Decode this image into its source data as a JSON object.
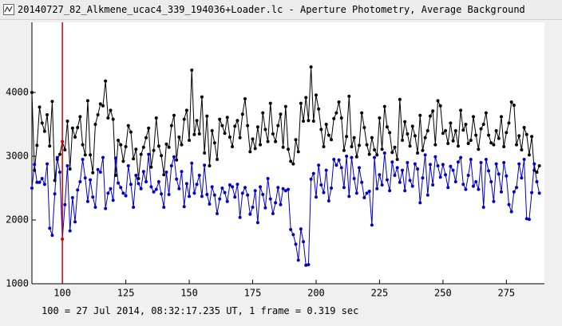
{
  "window_title": "20140727_82_Alkmene_ucac4_339_194036+Loader.lc - Aperture Photometry, Average Background",
  "status": "100 = 27 Jul 2014, 08:32:17.235 UT, 1 frame = 0.319 sec",
  "chart_data": {
    "type": "scatter",
    "xlim": [
      88,
      290
    ],
    "ylim": [
      1000,
      5100
    ],
    "xticks": [
      100,
      125,
      150,
      175,
      200,
      225,
      250,
      275
    ],
    "yticks": [
      1000,
      2000,
      3000,
      4000
    ],
    "cursor": 100,
    "cursor_color": "#cc0000",
    "x": [
      88,
      89,
      90,
      91,
      92,
      93,
      94,
      95,
      96,
      97,
      98,
      99,
      100,
      101,
      102,
      103,
      104,
      105,
      106,
      107,
      108,
      109,
      110,
      111,
      112,
      113,
      114,
      115,
      116,
      117,
      118,
      119,
      120,
      121,
      122,
      123,
      124,
      125,
      126,
      127,
      128,
      129,
      130,
      131,
      132,
      133,
      134,
      135,
      136,
      137,
      138,
      139,
      140,
      141,
      142,
      143,
      144,
      145,
      146,
      147,
      148,
      149,
      150,
      151,
      152,
      153,
      154,
      155,
      156,
      157,
      158,
      159,
      160,
      161,
      162,
      163,
      164,
      165,
      166,
      167,
      168,
      169,
      170,
      171,
      172,
      173,
      174,
      175,
      176,
      177,
      178,
      179,
      180,
      181,
      182,
      183,
      184,
      185,
      186,
      187,
      188,
      189,
      190,
      191,
      192,
      193,
      194,
      195,
      196,
      197,
      198,
      199,
      200,
      201,
      202,
      203,
      204,
      205,
      206,
      207,
      208,
      209,
      210,
      211,
      212,
      213,
      214,
      215,
      216,
      217,
      218,
      219,
      220,
      221,
      222,
      223,
      224,
      225,
      226,
      227,
      228,
      229,
      230,
      231,
      232,
      233,
      234,
      235,
      236,
      237,
      238,
      239,
      240,
      241,
      242,
      243,
      244,
      245,
      246,
      247,
      248,
      249,
      250,
      251,
      252,
      253,
      254,
      255,
      256,
      257,
      258,
      259,
      260,
      261,
      262,
      263,
      264,
      265,
      266,
      267,
      268,
      269,
      270,
      271,
      272,
      273,
      274,
      275,
      276,
      277,
      278,
      279,
      280,
      281,
      282,
      283,
      284,
      285,
      286,
      287,
      288
    ],
    "series": [
      {
        "color": "#000000",
        "values": [
          4000,
          2780,
          3170,
          3770,
          3520,
          3390,
          3650,
          3160,
          3860,
          2620,
          2950,
          3030,
          3230,
          3100,
          3550,
          2800,
          3440,
          3300,
          3450,
          3620,
          3180,
          3020,
          3870,
          3020,
          2740,
          3500,
          3650,
          3820,
          3790,
          4180,
          3600,
          3720,
          3580,
          2700,
          3250,
          3180,
          2920,
          3150,
          3480,
          3380,
          2960,
          3110,
          2650,
          3030,
          3140,
          3290,
          3440,
          2830,
          3090,
          3600,
          3160,
          3010,
          2710,
          3190,
          3140,
          3480,
          3640,
          2940,
          3300,
          3180,
          3580,
          3720,
          3250,
          4350,
          3340,
          3560,
          3350,
          3930,
          3050,
          3630,
          2850,
          3400,
          3210,
          2950,
          3580,
          3480,
          3360,
          3610,
          3300,
          3150,
          3470,
          3560,
          3290,
          3660,
          3900,
          3480,
          3070,
          3270,
          3120,
          3460,
          3180,
          3680,
          3420,
          3230,
          3830,
          3350,
          3230,
          3480,
          3660,
          3140,
          3780,
          3110,
          2920,
          2880,
          3260,
          3070,
          3830,
          3550,
          3920,
          3560,
          4400,
          3550,
          3960,
          3740,
          3420,
          3150,
          3500,
          3330,
          3260,
          3590,
          3680,
          3850,
          3600,
          3090,
          3310,
          3940,
          3150,
          3290,
          2990,
          3170,
          3680,
          3450,
          3180,
          3030,
          3290,
          3100,
          3020,
          3600,
          3110,
          3780,
          3460,
          3370,
          3060,
          3140,
          2950,
          3890,
          3250,
          3540,
          3350,
          3160,
          3470,
          3320,
          3050,
          3640,
          3090,
          3290,
          3400,
          3630,
          3710,
          3180,
          3870,
          3790,
          3360,
          3400,
          3200,
          3520,
          3240,
          3400,
          3160,
          3720,
          3410,
          3500,
          3200,
          3250,
          3620,
          3330,
          3110,
          3430,
          3500,
          3680,
          3330,
          3210,
          3180,
          3400,
          3280,
          3620,
          3150,
          3370,
          3520,
          3850,
          3800,
          3180,
          3320,
          3100,
          3450,
          3340,
          3020,
          3310,
          2780,
          2750,
          2850
        ]
      },
      {
        "color": "#0000cc",
        "values": [
          2500,
          2870,
          2590,
          2590,
          2650,
          2560,
          2880,
          1870,
          1760,
          2410,
          2980,
          2750,
          1700,
          2240,
          2850,
          1830,
          2350,
          1970,
          2470,
          2600,
          2950,
          2660,
          2290,
          2630,
          2360,
          2200,
          2790,
          2750,
          2980,
          2180,
          2420,
          2490,
          2310,
          2970,
          2580,
          2510,
          2420,
          2380,
          2850,
          2560,
          2200,
          2700,
          2570,
          2490,
          2760,
          2600,
          3030,
          2520,
          2440,
          2480,
          2600,
          2410,
          2200,
          2750,
          2400,
          2850,
          2990,
          2640,
          2490,
          2760,
          2210,
          2570,
          2370,
          2890,
          2420,
          2560,
          2700,
          2370,
          2860,
          2400,
          2250,
          2520,
          2390,
          2100,
          2330,
          2500,
          2430,
          2290,
          2550,
          2520,
          2360,
          2560,
          2040,
          2420,
          2510,
          2390,
          2090,
          2200,
          2460,
          1960,
          2520,
          2400,
          2190,
          2650,
          2330,
          2100,
          2270,
          2510,
          2240,
          2490,
          2460,
          2480,
          1850,
          1770,
          1620,
          1370,
          1860,
          1660,
          1290,
          1300,
          2640,
          2730,
          2360,
          2860,
          2550,
          2430,
          2780,
          2300,
          2500,
          2950,
          2860,
          2940,
          2820,
          2510,
          3000,
          2370,
          2980,
          2650,
          2420,
          2820,
          2590,
          2350,
          2420,
          2450,
          1920,
          2980,
          2490,
          2710,
          2550,
          3050,
          2630,
          2460,
          2910,
          2700,
          2820,
          2590,
          2780,
          2460,
          2900,
          2620,
          2530,
          2880,
          2800,
          2270,
          2660,
          3020,
          2390,
          2870,
          2550,
          2990,
          2850,
          2670,
          2870,
          2710,
          2510,
          2840,
          2780,
          2600,
          2910,
          2980,
          2560,
          2480,
          2700,
          2950,
          2530,
          2600,
          2480,
          2900,
          2200,
          2950,
          2770,
          2600,
          2290,
          2880,
          2720,
          2440,
          2900,
          2690,
          2240,
          2130,
          2440,
          2510,
          2880,
          2660,
          2950,
          2020,
          2010,
          2430,
          2880,
          2600,
          2420
        ]
      }
    ]
  }
}
